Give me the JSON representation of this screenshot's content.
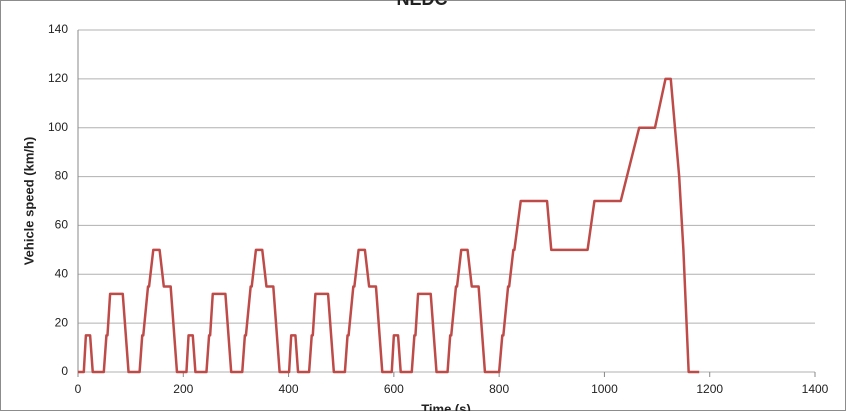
{
  "chart_data": {
    "type": "line",
    "title": "NEDC",
    "x_label": "Time (s)",
    "y_label": "Vehicle speed (km/h)",
    "x": [
      0,
      11,
      15,
      23,
      28,
      49,
      54,
      56,
      61,
      85,
      96,
      117,
      122,
      124,
      133,
      135,
      143,
      155,
      163,
      176,
      188,
      195,
      206,
      210,
      218,
      223,
      244,
      249,
      251,
      256,
      280,
      291,
      312,
      317,
      319,
      328,
      330,
      338,
      350,
      358,
      371,
      383,
      390,
      401,
      405,
      413,
      418,
      439,
      444,
      446,
      451,
      475,
      486,
      507,
      512,
      514,
      523,
      525,
      533,
      545,
      553,
      566,
      578,
      585,
      596,
      600,
      608,
      613,
      634,
      639,
      641,
      646,
      670,
      681,
      702,
      707,
      709,
      718,
      720,
      728,
      740,
      748,
      761,
      773,
      780,
      800,
      806,
      808,
      817,
      819,
      827,
      829,
      841,
      891,
      899,
      968,
      981,
      1031,
      1066,
      1096,
      1116,
      1126,
      1142,
      1150,
      1160,
      1180
    ],
    "values": [
      0,
      0,
      15,
      15,
      0,
      0,
      15,
      15,
      32,
      32,
      0,
      0,
      15,
      15,
      35,
      35,
      50,
      50,
      35,
      35,
      0,
      0,
      0,
      15,
      15,
      0,
      0,
      15,
      15,
      32,
      32,
      0,
      0,
      15,
      15,
      35,
      35,
      50,
      50,
      35,
      35,
      0,
      0,
      0,
      15,
      15,
      0,
      0,
      15,
      15,
      32,
      32,
      0,
      0,
      15,
      15,
      35,
      35,
      50,
      50,
      35,
      35,
      0,
      0,
      0,
      15,
      15,
      0,
      0,
      15,
      15,
      32,
      32,
      0,
      0,
      15,
      15,
      35,
      35,
      50,
      50,
      35,
      35,
      0,
      0,
      0,
      15,
      15,
      35,
      35,
      50,
      50,
      70,
      70,
      50,
      50,
      70,
      70,
      100,
      100,
      120,
      120,
      80,
      50,
      0,
      0
    ],
    "color": "#be4b48",
    "xlim": [
      0,
      1400
    ],
    "xticks": [
      0,
      200,
      400,
      600,
      800,
      1000,
      1200,
      1400
    ],
    "ylim": [
      0,
      140
    ],
    "yticks": [
      0,
      20,
      40,
      60,
      80,
      100,
      120,
      140
    ],
    "grid": true
  }
}
